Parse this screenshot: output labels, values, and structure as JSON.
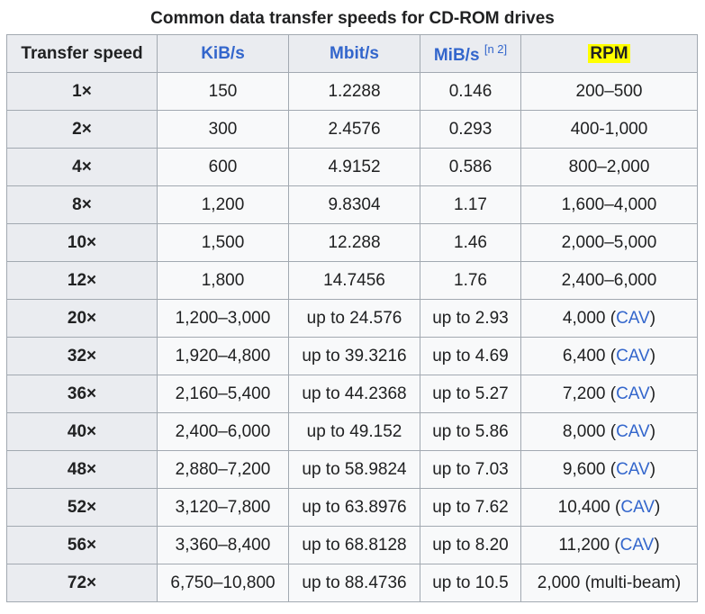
{
  "caption": "Common data transfer speeds for CD-ROM drives",
  "headers": {
    "speed": "Transfer speed",
    "kib": "KiB/s",
    "mbit": "Mbit/s",
    "mib": "MiB/s",
    "mib_note": "[n 2]",
    "rpm": "RPM"
  },
  "rows": [
    {
      "speed": "1×",
      "kib": "150",
      "mbit": "1.2288",
      "mib": "0.146",
      "rpm": "200–500",
      "rpm_link": ""
    },
    {
      "speed": "2×",
      "kib": "300",
      "mbit": "2.4576",
      "mib": "0.293",
      "rpm": "400-1,000",
      "rpm_link": ""
    },
    {
      "speed": "4×",
      "kib": "600",
      "mbit": "4.9152",
      "mib": "0.586",
      "rpm": "800–2,000",
      "rpm_link": ""
    },
    {
      "speed": "8×",
      "kib": "1,200",
      "mbit": "9.8304",
      "mib": "1.17",
      "rpm": "1,600–4,000",
      "rpm_link": ""
    },
    {
      "speed": "10×",
      "kib": "1,500",
      "mbit": "12.288",
      "mib": "1.46",
      "rpm": "2,000–5,000",
      "rpm_link": ""
    },
    {
      "speed": "12×",
      "kib": "1,800",
      "mbit": "14.7456",
      "mib": "1.76",
      "rpm": "2,400–6,000",
      "rpm_link": ""
    },
    {
      "speed": "20×",
      "kib": "1,200–3,000",
      "mbit": "up to 24.576",
      "mib": "up to 2.93",
      "rpm": "4,000 (",
      "rpm_link": "CAV"
    },
    {
      "speed": "32×",
      "kib": "1,920–4,800",
      "mbit": "up to 39.3216",
      "mib": "up to 4.69",
      "rpm": "6,400 (",
      "rpm_link": "CAV"
    },
    {
      "speed": "36×",
      "kib": "2,160–5,400",
      "mbit": "up to 44.2368",
      "mib": "up to 5.27",
      "rpm": "7,200 (",
      "rpm_link": "CAV"
    },
    {
      "speed": "40×",
      "kib": "2,400–6,000",
      "mbit": "up to 49.152",
      "mib": "up to 5.86",
      "rpm": "8,000 (",
      "rpm_link": "CAV"
    },
    {
      "speed": "48×",
      "kib": "2,880–7,200",
      "mbit": "up to 58.9824",
      "mib": "up to 7.03",
      "rpm": "9,600 (",
      "rpm_link": "CAV"
    },
    {
      "speed": "52×",
      "kib": "3,120–7,800",
      "mbit": "up to 63.8976",
      "mib": "up to 7.62",
      "rpm": "10,400 (",
      "rpm_link": "CAV"
    },
    {
      "speed": "56×",
      "kib": "3,360–8,400",
      "mbit": "up to 68.8128",
      "mib": "up to 8.20",
      "rpm": "11,200 (",
      "rpm_link": "CAV"
    },
    {
      "speed": "72×",
      "kib": "6,750–10,800",
      "mbit": "up to 88.4736",
      "mib": "up to 10.5",
      "rpm": "2,000 (multi-beam)",
      "rpm_link": ""
    }
  ]
}
